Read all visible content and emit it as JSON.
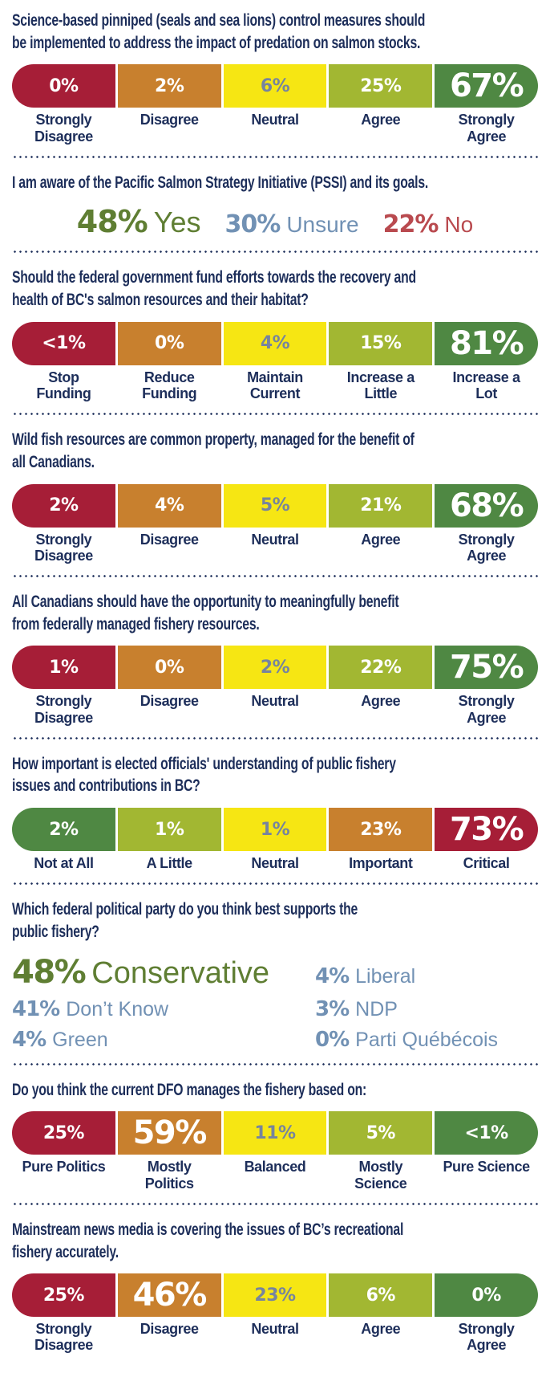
{
  "palette": {
    "crimson": "#a61e37",
    "orange": "#c8802e",
    "yellow": "#f6e613",
    "yellow_green": "#a2b732",
    "dark_green": "#4f8843",
    "navy_text": "#1d2e5a",
    "steel_blue": "#7191b4",
    "olive_green": "#5f7e33",
    "red_stat": "#b94a4f",
    "yellow_segment_text": "#76849e"
  },
  "chart_data": [
    {
      "type": "bar",
      "title": "Science-based pinniped (seals and sea lions) control measures should\nbe implemented to address the impact of predation on salmon stocks.",
      "emphasis_index": 4,
      "segments": [
        {
          "pct": "0%",
          "label": "Strongly\nDisagree",
          "color": "crimson"
        },
        {
          "pct": "2%",
          "label": "Disagree",
          "color": "orange"
        },
        {
          "pct": "6%",
          "label": "Neutral",
          "color": "yellow"
        },
        {
          "pct": "25%",
          "label": "Agree",
          "color": "yellow_green"
        },
        {
          "pct": "67%",
          "label": "Strongly\nAgree",
          "color": "dark_green"
        }
      ]
    },
    {
      "type": "stats",
      "title": "I am aware of the Pacific Salmon Strategy Initiative (PSSI) and its goals.",
      "stats": [
        {
          "pct": "48%",
          "label": "Yes",
          "color": "olive_green",
          "emphasis": true
        },
        {
          "pct": "30%",
          "label": "Unsure",
          "color": "steel_blue",
          "emphasis": false
        },
        {
          "pct": "22%",
          "label": "No",
          "color": "red_stat",
          "emphasis": false
        }
      ]
    },
    {
      "type": "bar",
      "title": "Should the federal government fund efforts towards the recovery and\nhealth of BC's salmon resources and their habitat?",
      "emphasis_index": 4,
      "segments": [
        {
          "pct": "<1%",
          "label": "Stop\nFunding",
          "color": "crimson"
        },
        {
          "pct": "0%",
          "label": "Reduce\nFunding",
          "color": "orange"
        },
        {
          "pct": "4%",
          "label": "Maintain\nCurrent",
          "color": "yellow"
        },
        {
          "pct": "15%",
          "label": "Increase a\nLittle",
          "color": "yellow_green"
        },
        {
          "pct": "81%",
          "label": "Increase a\nLot",
          "color": "dark_green"
        }
      ]
    },
    {
      "type": "bar",
      "title": "Wild fish resources are common property, managed for the benefit of\nall Canadians.",
      "emphasis_index": 4,
      "segments": [
        {
          "pct": "2%",
          "label": "Strongly\nDisagree",
          "color": "crimson"
        },
        {
          "pct": "4%",
          "label": "Disagree",
          "color": "orange"
        },
        {
          "pct": "5%",
          "label": "Neutral",
          "color": "yellow"
        },
        {
          "pct": "21%",
          "label": "Agree",
          "color": "yellow_green"
        },
        {
          "pct": "68%",
          "label": "Strongly\nAgree",
          "color": "dark_green"
        }
      ]
    },
    {
      "type": "bar",
      "title": "All Canadians should have the opportunity to meaningfully benefit\nfrom federally managed fishery resources.",
      "emphasis_index": 4,
      "segments": [
        {
          "pct": "1%",
          "label": "Strongly\nDisagree",
          "color": "crimson"
        },
        {
          "pct": "0%",
          "label": "Disagree",
          "color": "orange"
        },
        {
          "pct": "2%",
          "label": "Neutral",
          "color": "yellow"
        },
        {
          "pct": "22%",
          "label": "Agree",
          "color": "yellow_green"
        },
        {
          "pct": "75%",
          "label": "Strongly\nAgree",
          "color": "dark_green"
        }
      ]
    },
    {
      "type": "bar",
      "title": "How important is elected officials' understanding of public fishery\nissues and contributions in BC?",
      "emphasis_index": 4,
      "segments": [
        {
          "pct": "2%",
          "label": "Not at All",
          "color": "dark_green"
        },
        {
          "pct": "1%",
          "label": "A Little",
          "color": "yellow_green"
        },
        {
          "pct": "1%",
          "label": "Neutral",
          "color": "yellow"
        },
        {
          "pct": "23%",
          "label": "Important",
          "color": "orange"
        },
        {
          "pct": "73%",
          "label": "Critical",
          "color": "crimson"
        }
      ]
    },
    {
      "type": "stats-grid",
      "title": "Which federal political party do you think best supports the\npublic fishery?",
      "items": [
        {
          "pct": "48%",
          "label": "Conservative",
          "color": "olive_green",
          "emphasis": true
        },
        {
          "pct": "4%",
          "label": "Liberal",
          "color": "steel_blue",
          "emphasis": false
        },
        {
          "pct": "41%",
          "label": "Don’t Know",
          "color": "steel_blue",
          "emphasis": false
        },
        {
          "pct": "3%",
          "label": "NDP",
          "color": "steel_blue",
          "emphasis": false
        },
        {
          "pct": "4%",
          "label": "Green",
          "color": "steel_blue",
          "emphasis": false
        },
        {
          "pct": "0%",
          "label": "Parti Québécois",
          "color": "steel_blue",
          "emphasis": false
        }
      ]
    },
    {
      "type": "bar",
      "title": "Do you think the current DFO manages the fishery based on:",
      "emphasis_index": 1,
      "segments": [
        {
          "pct": "25%",
          "label": "Pure Politics",
          "color": "crimson"
        },
        {
          "pct": "59%",
          "label": "Mostly\nPolitics",
          "color": "orange"
        },
        {
          "pct": "11%",
          "label": "Balanced",
          "color": "yellow"
        },
        {
          "pct": "5%",
          "label": "Mostly\nScience",
          "color": "yellow_green"
        },
        {
          "pct": "<1%",
          "label": "Pure Science",
          "color": "dark_green"
        }
      ]
    },
    {
      "type": "bar",
      "title": "Mainstream news media is covering the issues of BC’s recreational\nfishery accurately.",
      "emphasis_index": 1,
      "segments": [
        {
          "pct": "25%",
          "label": "Strongly\nDisagree",
          "color": "crimson"
        },
        {
          "pct": "46%",
          "label": "Disagree",
          "color": "orange"
        },
        {
          "pct": "23%",
          "label": "Neutral",
          "color": "yellow"
        },
        {
          "pct": "6%",
          "label": "Agree",
          "color": "yellow_green"
        },
        {
          "pct": "0%",
          "label": "Strongly\nAgree",
          "color": "dark_green"
        }
      ]
    }
  ]
}
